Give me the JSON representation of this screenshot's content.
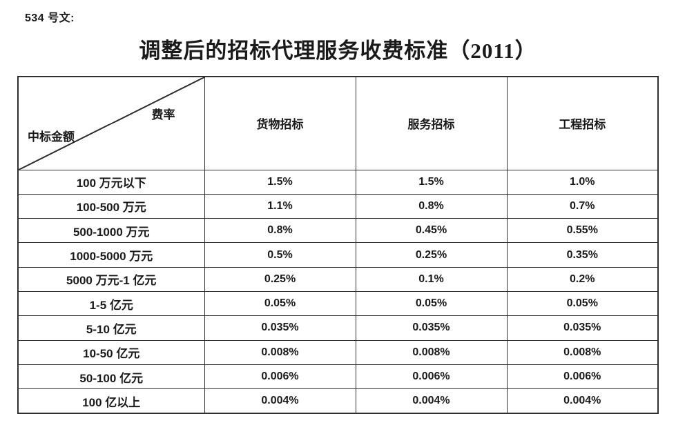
{
  "doc": {
    "ref_label": "534 号文:",
    "title": "调整后的招标代理服务收费标准（2011）"
  },
  "table": {
    "corner": {
      "top_right": "费率",
      "bottom_left": "中标金额"
    },
    "columns": [
      "货物招标",
      "服务招标",
      "工程招标"
    ],
    "rows": [
      {
        "label": "100 万元以下",
        "values": [
          "1.5%",
          "1.5%",
          "1.0%"
        ]
      },
      {
        "label": "100-500 万元",
        "values": [
          "1.1%",
          "0.8%",
          "0.7%"
        ]
      },
      {
        "label": "500-1000 万元",
        "values": [
          "0.8%",
          "0.45%",
          "0.55%"
        ]
      },
      {
        "label": "1000-5000 万元",
        "values": [
          "0.5%",
          "0.25%",
          "0.35%"
        ]
      },
      {
        "label": "5000 万元-1 亿元",
        "values": [
          "0.25%",
          "0.1%",
          "0.2%"
        ]
      },
      {
        "label": "1-5 亿元",
        "values": [
          "0.05%",
          "0.05%",
          "0.05%"
        ]
      },
      {
        "label": "5-10 亿元",
        "values": [
          "0.035%",
          "0.035%",
          "0.035%"
        ]
      },
      {
        "label": "10-50 亿元",
        "values": [
          "0.008%",
          "0.008%",
          "0.008%"
        ]
      },
      {
        "label": "50-100 亿元",
        "values": [
          "0.006%",
          "0.006%",
          "0.006%"
        ]
      },
      {
        "label": "100 亿以上",
        "values": [
          "0.004%",
          "0.004%",
          "0.004%"
        ]
      }
    ]
  },
  "colors": {
    "text": "#1a1a1a",
    "border": "#2f2f2f",
    "background": "#ffffff"
  }
}
